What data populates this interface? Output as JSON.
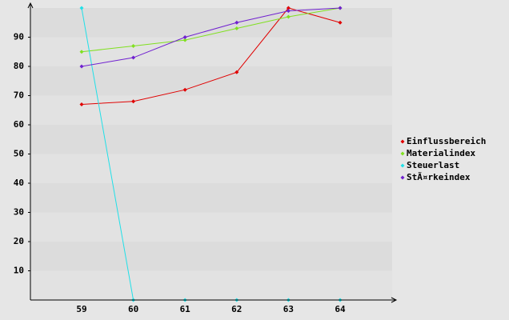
{
  "chart_data": {
    "type": "line",
    "categories": [
      "59",
      "60",
      "61",
      "62",
      "63",
      "64"
    ],
    "series": [
      {
        "name": "Einflussbereich",
        "color": "#e00000",
        "values": [
          67,
          68,
          72,
          78,
          100,
          95
        ]
      },
      {
        "name": "Materialindex",
        "color": "#80e020",
        "values": [
          85,
          87,
          89,
          93,
          97,
          100
        ]
      },
      {
        "name": "Steuerlast",
        "color": "#20e0e8",
        "values": [
          100,
          0,
          0,
          0,
          0,
          0
        ]
      },
      {
        "name": "StÃ¤rkeindex",
        "color": "#7020d0",
        "values": [
          80,
          83,
          90,
          95,
          99,
          100
        ]
      }
    ],
    "ylim": [
      0,
      100
    ],
    "yticks": [
      10,
      20,
      30,
      40,
      50,
      60,
      70,
      80,
      90
    ],
    "grid": true,
    "legend": "right"
  }
}
